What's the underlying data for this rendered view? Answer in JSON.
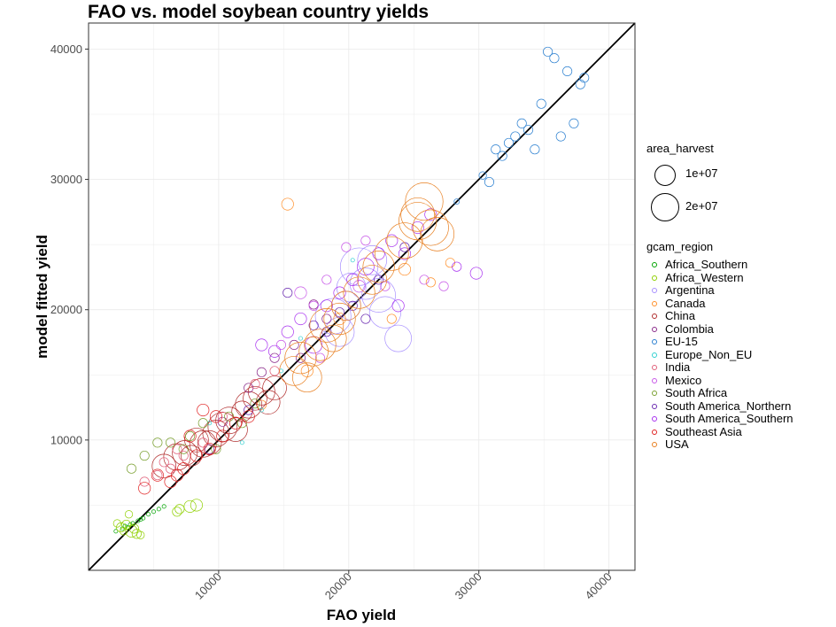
{
  "chart_data": {
    "type": "scatter",
    "title": "FAO vs. model soybean country yields",
    "xlabel": "FAO yield",
    "ylabel": "model fitted yield",
    "xlim": [
      0,
      42000
    ],
    "ylim": [
      0,
      42000
    ],
    "x_ticks": [
      10000,
      20000,
      30000,
      40000
    ],
    "y_ticks": [
      10000,
      20000,
      30000,
      40000
    ],
    "x_tick_labels": [
      "10000",
      "20000",
      "30000",
      "40000"
    ],
    "y_tick_labels": [
      "10000",
      "20000",
      "30000",
      "40000"
    ],
    "grid": true,
    "reference_line": "y = x",
    "size_legend": {
      "title": "area_harvest",
      "entries": [
        {
          "label": "1e+07",
          "value": 10000000
        },
        {
          "label": "2e+07",
          "value": 20000000
        }
      ]
    },
    "color_legend": {
      "title": "gcam_region",
      "placement": "right"
    },
    "series": [
      {
        "name": "Africa_Southern",
        "color": "#00a400",
        "points": [
          [
            2100,
            3000,
            0.05
          ],
          [
            2600,
            3200,
            0.05
          ],
          [
            3000,
            3300,
            0.05
          ],
          [
            3400,
            3600,
            0.05
          ],
          [
            3800,
            3800,
            0.05
          ],
          [
            4200,
            4000,
            0.05
          ],
          [
            4600,
            4300,
            0.05
          ],
          [
            5000,
            4500,
            0.05
          ],
          [
            5400,
            4700,
            0.05
          ],
          [
            5800,
            4900,
            0.05
          ],
          [
            2800,
            3400,
            0.05
          ],
          [
            3200,
            3500,
            0.05
          ],
          [
            4000,
            3900,
            0.05
          ]
        ]
      },
      {
        "name": "Africa_Western",
        "color": "#8fd000",
        "points": [
          [
            2200,
            3600,
            0.2
          ],
          [
            2500,
            3300,
            0.3
          ],
          [
            2700,
            3000,
            0.2
          ],
          [
            3100,
            4300,
            0.2
          ],
          [
            3300,
            3000,
            0.5
          ],
          [
            3500,
            3200,
            0.3
          ],
          [
            3700,
            2800,
            0.3
          ],
          [
            4000,
            2700,
            0.2
          ],
          [
            7000,
            4700,
            0.3
          ],
          [
            7800,
            4900,
            0.5
          ],
          [
            8300,
            5000,
            0.5
          ],
          [
            6800,
            4500,
            0.3
          ],
          [
            2900,
            3500,
            0.3
          ]
        ]
      },
      {
        "name": "Argentina",
        "color": "#a890ff",
        "points": [
          [
            20800,
            23300,
            5.0
          ],
          [
            21300,
            22000,
            3.5
          ],
          [
            22300,
            21100,
            4.0
          ],
          [
            19800,
            20300,
            3.0
          ],
          [
            18800,
            19500,
            4.5
          ],
          [
            20200,
            21700,
            3.0
          ],
          [
            22800,
            19800,
            3.5
          ],
          [
            19300,
            18300,
            3.0
          ],
          [
            21800,
            23800,
            3.0
          ],
          [
            23800,
            17800,
            2.5
          ]
        ]
      },
      {
        "name": "Canada",
        "color": "#ff8f2a",
        "points": [
          [
            15300,
            28100,
            0.5
          ],
          [
            24300,
            23100,
            0.5
          ],
          [
            19300,
            19300,
            0.5
          ],
          [
            13300,
            12700,
            0.3
          ],
          [
            26300,
            22100,
            0.3
          ],
          [
            27800,
            23600,
            0.3
          ],
          [
            16800,
            15300,
            0.5
          ],
          [
            23300,
            19300,
            0.3
          ]
        ]
      },
      {
        "name": "China",
        "color": "#b02c2c",
        "points": [
          [
            5800,
            8000,
            2.0
          ],
          [
            6800,
            8700,
            2.5
          ],
          [
            7400,
            9000,
            2.2
          ],
          [
            8300,
            10000,
            2.0
          ],
          [
            8800,
            9700,
            2.5
          ],
          [
            9300,
            9800,
            2.0
          ],
          [
            9800,
            10500,
            2.5
          ],
          [
            10300,
            11000,
            3.0
          ],
          [
            10800,
            11500,
            2.5
          ],
          [
            11300,
            10800,
            2.0
          ],
          [
            12300,
            12700,
            2.5
          ],
          [
            12800,
            13200,
            2.0
          ],
          [
            13300,
            13700,
            2.5
          ],
          [
            13800,
            12900,
            2.0
          ],
          [
            14300,
            14000,
            2.0
          ],
          [
            11800,
            12200,
            1.5
          ],
          [
            7900,
            8800,
            1.5
          ]
        ]
      },
      {
        "name": "Colombia",
        "color": "#8a2a8a",
        "points": [
          [
            9300,
            9300,
            0.3
          ],
          [
            12300,
            14000,
            0.3
          ],
          [
            14300,
            16300,
            0.3
          ],
          [
            15800,
            17300,
            0.3
          ],
          [
            18300,
            19300,
            0.3
          ],
          [
            10300,
            11400,
            0.3
          ],
          [
            13300,
            15200,
            0.3
          ],
          [
            16300,
            16300,
            0.3
          ],
          [
            17300,
            20400,
            0.3
          ]
        ]
      },
      {
        "name": "EU-15",
        "color": "#2a7fd0",
        "points": [
          [
            28300,
            28300,
            0.1
          ],
          [
            30300,
            30300,
            0.2
          ],
          [
            30800,
            29800,
            0.3
          ],
          [
            31300,
            32300,
            0.3
          ],
          [
            31800,
            31800,
            0.3
          ],
          [
            32300,
            32800,
            0.3
          ],
          [
            32800,
            33300,
            0.3
          ],
          [
            33300,
            34300,
            0.3
          ],
          [
            33800,
            33800,
            0.3
          ],
          [
            34300,
            32300,
            0.3
          ],
          [
            34800,
            35800,
            0.3
          ],
          [
            35300,
            39800,
            0.3
          ],
          [
            35800,
            39300,
            0.3
          ],
          [
            36300,
            33300,
            0.3
          ],
          [
            36800,
            38300,
            0.3
          ],
          [
            37300,
            34300,
            0.3
          ],
          [
            37800,
            37300,
            0.3
          ],
          [
            38100,
            37800,
            0.3
          ]
        ]
      },
      {
        "name": "Europe_Non_EU",
        "color": "#30d0d0",
        "points": [
          [
            9300,
            11300,
            0.05
          ],
          [
            13300,
            12300,
            0.05
          ],
          [
            14800,
            15300,
            0.05
          ],
          [
            16300,
            17800,
            0.05
          ],
          [
            20300,
            23800,
            0.05
          ],
          [
            11800,
            9800,
            0.05
          ]
        ]
      },
      {
        "name": "India",
        "color": "#e0607a",
        "points": [
          [
            5300,
            7300,
            0.3
          ],
          [
            5800,
            8300,
            0.3
          ],
          [
            6300,
            7800,
            0.3
          ],
          [
            4300,
            6800,
            0.3
          ],
          [
            7300,
            8800,
            0.3
          ],
          [
            8800,
            9800,
            0.3
          ],
          [
            10300,
            11800,
            0.3
          ],
          [
            6800,
            9300,
            0.3
          ],
          [
            12800,
            14300,
            0.3
          ],
          [
            14300,
            15300,
            0.3
          ]
        ]
      },
      {
        "name": "Mexico",
        "color": "#c858e8",
        "points": [
          [
            16300,
            21300,
            0.5
          ],
          [
            17300,
            20300,
            0.3
          ],
          [
            18300,
            22300,
            0.3
          ],
          [
            19800,
            24800,
            0.3
          ],
          [
            20800,
            21800,
            0.5
          ],
          [
            14800,
            17300,
            0.3
          ],
          [
            21300,
            25300,
            0.3
          ],
          [
            25800,
            22300,
            0.3
          ],
          [
            27300,
            21800,
            0.3
          ],
          [
            17800,
            16300,
            0.3
          ],
          [
            22800,
            21800,
            0.3
          ]
        ]
      },
      {
        "name": "South Africa",
        "color": "#7aa030",
        "points": [
          [
            7300,
            9300,
            0.3
          ],
          [
            7800,
            10300,
            0.3
          ],
          [
            8800,
            11300,
            0.3
          ],
          [
            9800,
            9300,
            0.3
          ],
          [
            10800,
            11800,
            0.3
          ],
          [
            11800,
            11300,
            0.3
          ],
          [
            12800,
            12800,
            0.3
          ],
          [
            6300,
            9800,
            0.3
          ],
          [
            3300,
            7800,
            0.3
          ],
          [
            4300,
            8800,
            0.3
          ],
          [
            5300,
            9800,
            0.3
          ]
        ]
      },
      {
        "name": "South America_Northern",
        "color": "#6a2ab0",
        "points": [
          [
            15300,
            21300,
            0.3
          ],
          [
            18300,
            18300,
            0.3
          ],
          [
            19300,
            19800,
            0.3
          ],
          [
            20300,
            20300,
            0.3
          ],
          [
            21300,
            19300,
            0.3
          ],
          [
            22300,
            22300,
            0.3
          ],
          [
            24300,
            24800,
            0.3
          ],
          [
            12300,
            12300,
            0.3
          ],
          [
            17300,
            18800,
            0.3
          ]
        ]
      },
      {
        "name": "South America_Southern",
        "color": "#a830f0",
        "points": [
          [
            14300,
            16800,
            0.5
          ],
          [
            15300,
            18300,
            0.5
          ],
          [
            16300,
            19300,
            0.5
          ],
          [
            17300,
            17300,
            1.0
          ],
          [
            18300,
            20300,
            0.5
          ],
          [
            19300,
            21300,
            0.5
          ],
          [
            20300,
            22300,
            0.5
          ],
          [
            21300,
            23300,
            1.0
          ],
          [
            22300,
            24300,
            0.5
          ],
          [
            23300,
            25300,
            0.5
          ],
          [
            24300,
            24300,
            0.5
          ],
          [
            25300,
            26300,
            0.5
          ],
          [
            26300,
            27300,
            0.5
          ],
          [
            28300,
            23300,
            0.3
          ],
          [
            29800,
            22800,
            0.5
          ],
          [
            23800,
            20300,
            0.5
          ],
          [
            13300,
            17300,
            0.5
          ]
        ]
      },
      {
        "name": "Southeast Asia",
        "color": "#e02020",
        "points": [
          [
            5300,
            7300,
            0.5
          ],
          [
            6300,
            6800,
            0.5
          ],
          [
            7300,
            7800,
            0.5
          ],
          [
            8300,
            8800,
            0.5
          ],
          [
            9300,
            9300,
            0.5
          ],
          [
            10300,
            10300,
            0.5
          ],
          [
            11300,
            11300,
            0.5
          ],
          [
            12300,
            11800,
            0.5
          ],
          [
            8800,
            12300,
            0.5
          ],
          [
            4300,
            6300,
            0.5
          ],
          [
            6800,
            7300,
            0.5
          ],
          [
            7800,
            10300,
            0.5
          ],
          [
            9800,
            11800,
            0.5
          ]
        ]
      },
      {
        "name": "USA",
        "color": "#e87f20",
        "points": [
          [
            15800,
            15300,
            3.0
          ],
          [
            16300,
            16300,
            3.5
          ],
          [
            17300,
            16800,
            3.0
          ],
          [
            17800,
            17300,
            3.5
          ],
          [
            18300,
            18800,
            4.0
          ],
          [
            19300,
            19300,
            3.5
          ],
          [
            19800,
            20300,
            3.0
          ],
          [
            20800,
            21300,
            3.5
          ],
          [
            21800,
            22300,
            3.0
          ],
          [
            22300,
            23300,
            3.5
          ],
          [
            23300,
            24300,
            4.0
          ],
          [
            24300,
            25300,
            4.5
          ],
          [
            25300,
            26800,
            5.0
          ],
          [
            25800,
            28300,
            5.0
          ],
          [
            26300,
            26300,
            4.5
          ],
          [
            26800,
            25800,
            4.0
          ],
          [
            25300,
            27300,
            4.0
          ],
          [
            16800,
            14800,
            3.0
          ],
          [
            18800,
            17800,
            2.5
          ]
        ]
      }
    ]
  }
}
